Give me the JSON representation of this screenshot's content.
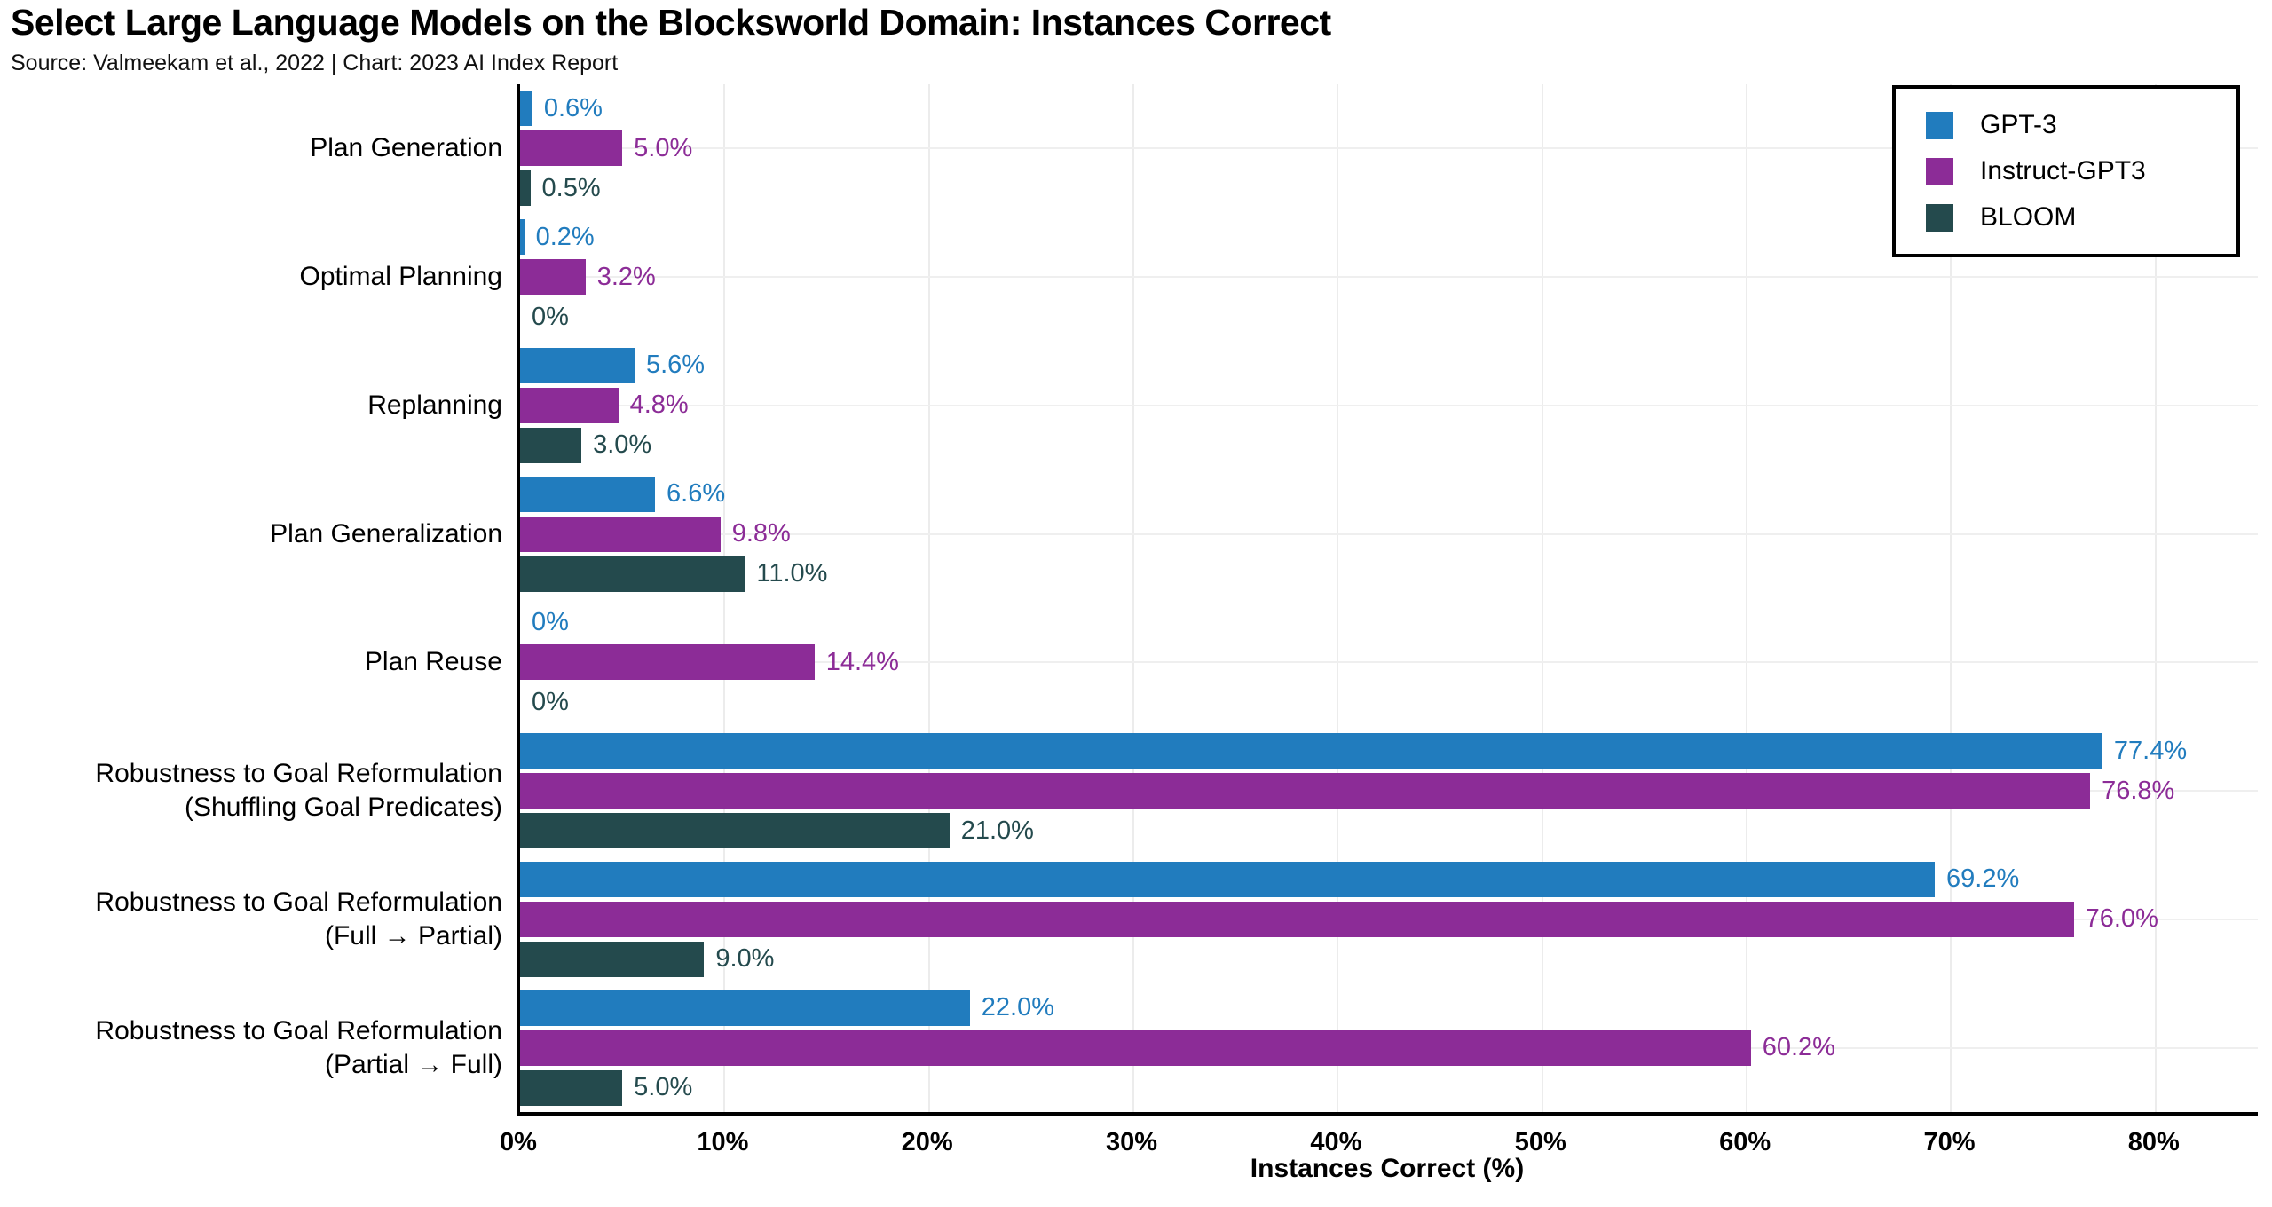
{
  "header": {
    "title": "Select Large Language Models on the Blocksworld Domain: Instances Correct",
    "source": "Source: Valmeekam et al., 2022 | Chart: 2023 AI Index Report"
  },
  "colors": {
    "gpt3": "#217CBE",
    "instruct_gpt3": "#8C2C97",
    "bloom": "#244A4D",
    "axis": "#000000",
    "gridline": "#ececec"
  },
  "chart_data": {
    "type": "bar",
    "orientation": "horizontal",
    "title": "Select Large Language Models on the Blocksworld Domain: Instances Correct",
    "subtitle": "Source: Valmeekam et al., 2022 | Chart: 2023 AI Index Report",
    "xlabel": "Instances Correct (%)",
    "ylabel": "",
    "xlim": [
      0,
      85
    ],
    "grid": true,
    "legend_position": "top-right",
    "x_ticks": [
      "0%",
      "10%",
      "20%",
      "30%",
      "40%",
      "50%",
      "60%",
      "70%",
      "80%"
    ],
    "categories": [
      "Plan Generation",
      "Optimal Planning",
      "Replanning",
      "Plan Generalization",
      "Plan Reuse",
      "Robustness to Goal Reformulation\n(Shuffling Goal Predicates)",
      "Robustness to Goal Reformulation\n(Full → Partial)",
      "Robustness to Goal Reformulation\n(Partial → Full)"
    ],
    "series": [
      {
        "name": "GPT-3",
        "color": "#217CBE",
        "values": [
          0.6,
          0.2,
          5.6,
          6.6,
          0,
          77.4,
          69.2,
          22.0
        ],
        "labels": [
          "0.6%",
          "0.2%",
          "5.6%",
          "6.6%",
          "0%",
          "77.4%",
          "69.2%",
          "22.0%"
        ]
      },
      {
        "name": "Instruct-GPT3",
        "color": "#8C2C97",
        "values": [
          5.0,
          3.2,
          4.8,
          9.8,
          14.4,
          76.8,
          76.0,
          60.2
        ],
        "labels": [
          "5.0%",
          "3.2%",
          "4.8%",
          "9.8%",
          "14.4%",
          "76.8%",
          "76.0%",
          "60.2%"
        ]
      },
      {
        "name": "BLOOM",
        "color": "#244A4D",
        "values": [
          0.5,
          0,
          3.0,
          11.0,
          0,
          21.0,
          9.0,
          5.0
        ],
        "labels": [
          "0.5%",
          "0%",
          "3.0%",
          "11.0%",
          "0%",
          "21.0%",
          "9.0%",
          "5.0%"
        ]
      }
    ]
  }
}
